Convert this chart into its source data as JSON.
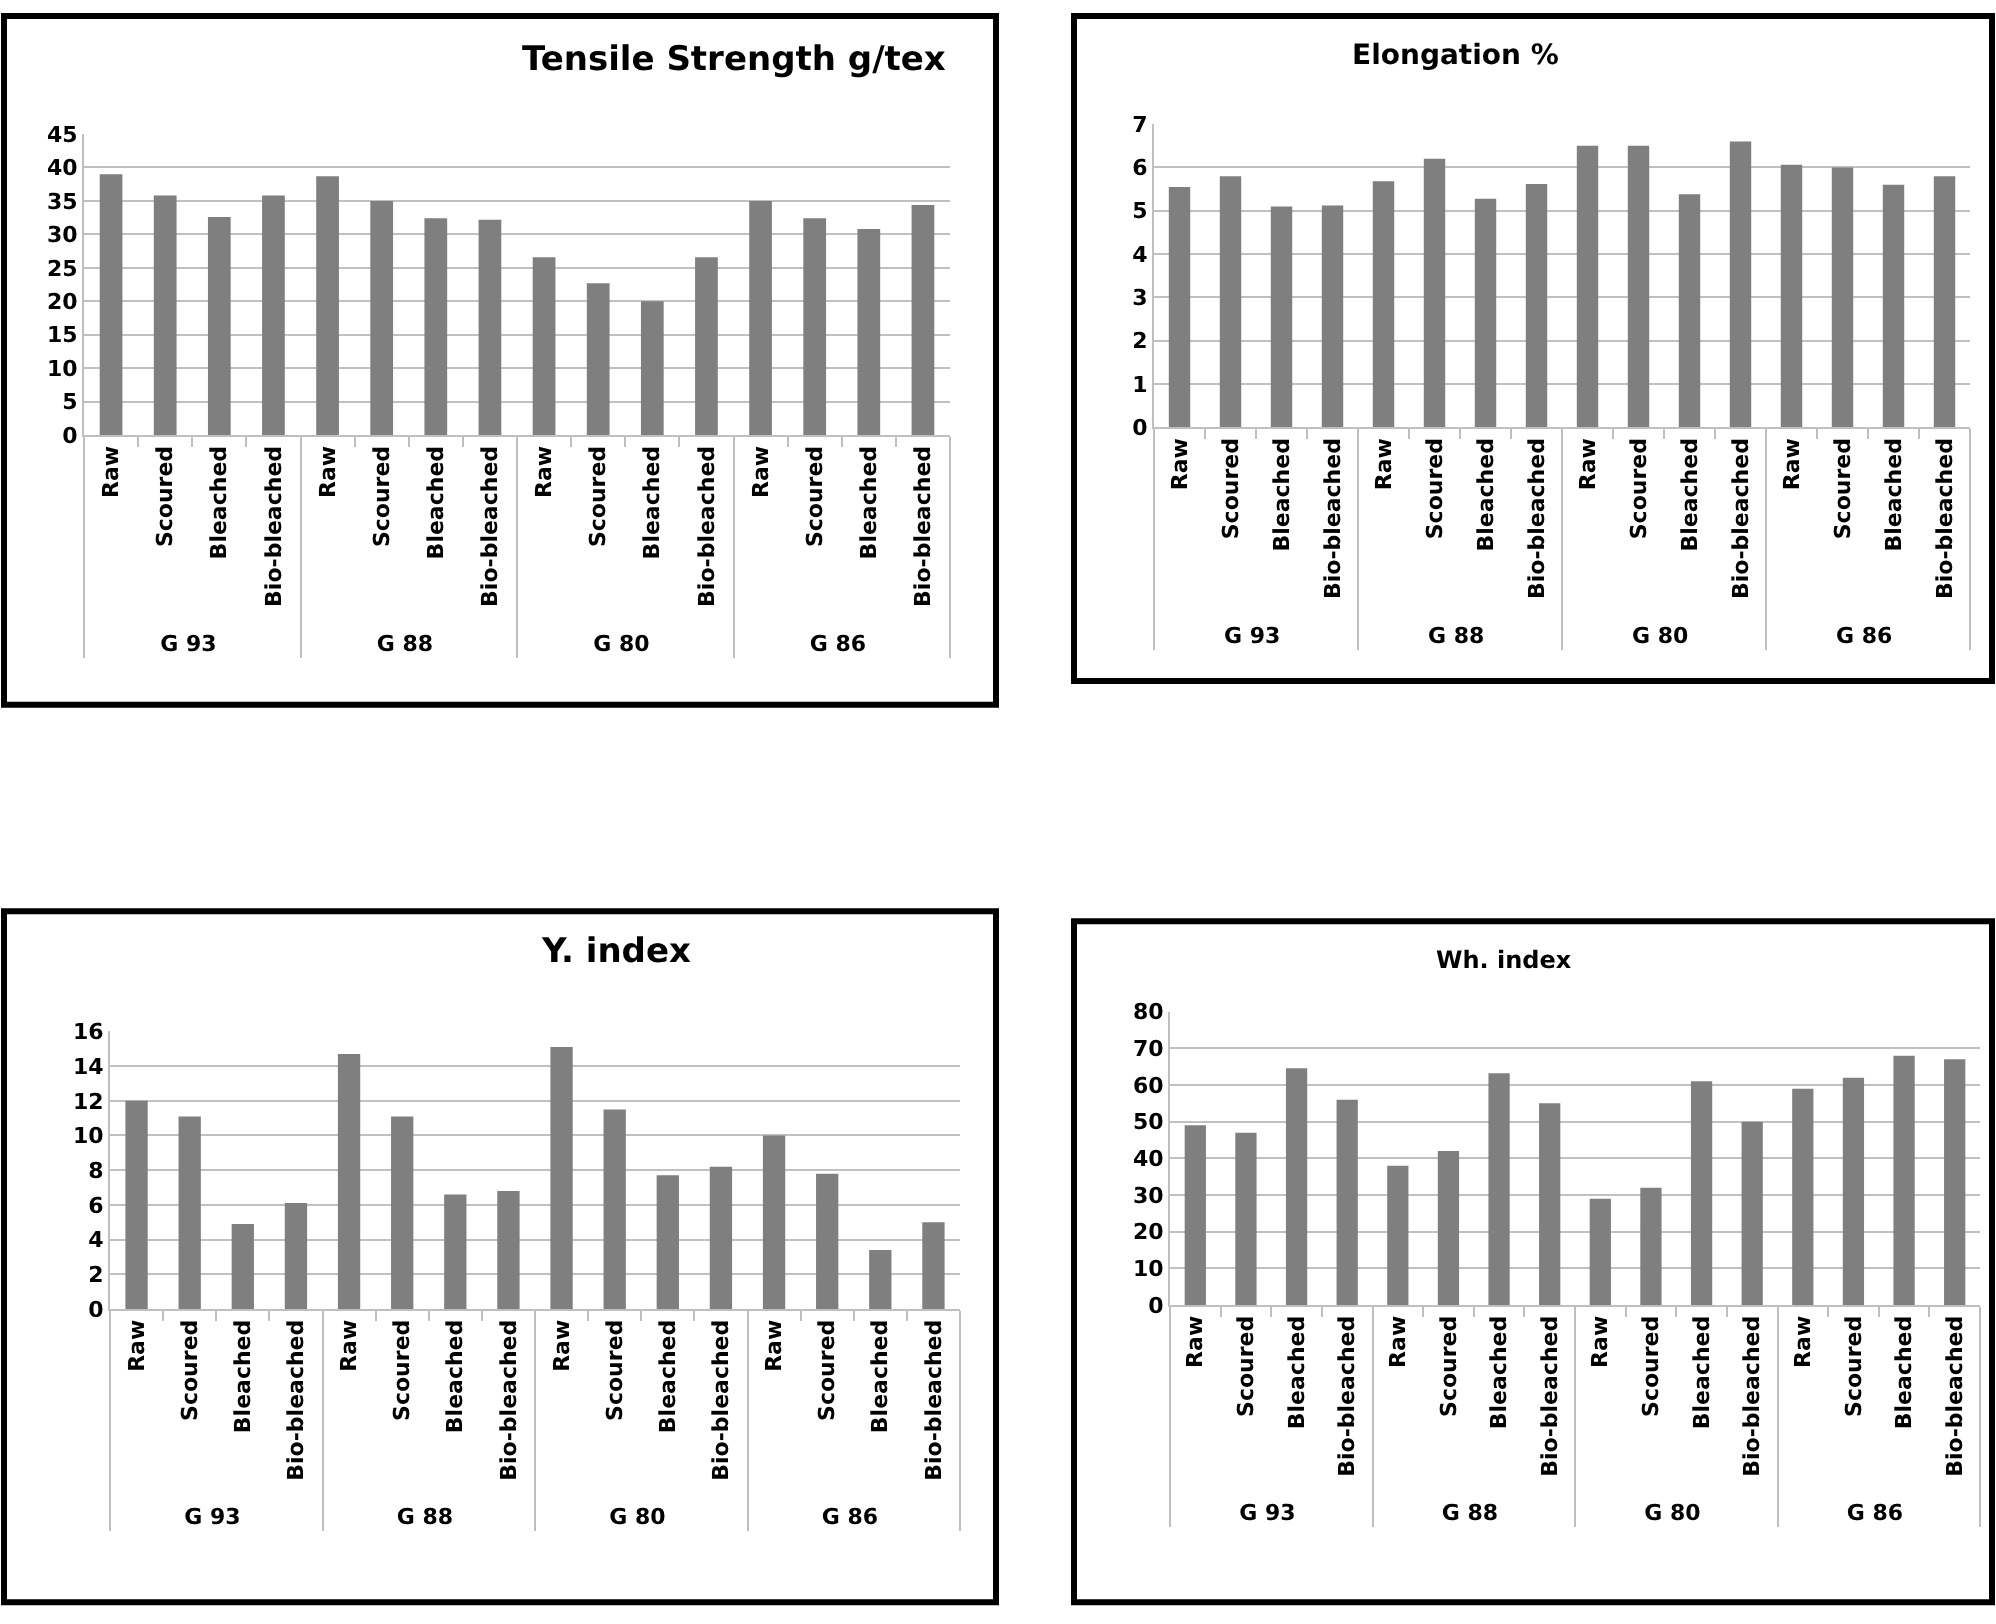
{
  "chart_data": [
    {
      "type": "bar",
      "title": "Tensile Strength g/tex",
      "categories": [
        "Raw",
        "Scoured",
        "Bleached",
        "Bio-bleached",
        "Raw",
        "Scoured",
        "Bleached",
        "Bio-bleached",
        "Raw",
        "Scoured",
        "Bleached",
        "Bio-bleached",
        "Raw",
        "Scoured",
        "Bleached",
        "Bio-bleached"
      ],
      "values": [
        39,
        35.8,
        32.6,
        35.8,
        38.7,
        35,
        32.4,
        32.2,
        26.6,
        22.7,
        20,
        26.6,
        35,
        32.4,
        30.8,
        34.4
      ],
      "color": "#7f7f7f",
      "ylim": [
        0,
        45
      ],
      "yticks": [
        0,
        5,
        10,
        15,
        20,
        25,
        30,
        35,
        40,
        45
      ],
      "grid": "y",
      "annotations": [
        "G 93",
        "G 88",
        "G 80",
        "G 86"
      ]
    },
    {
      "type": "bar",
      "title": "Elongation %",
      "categories": [
        "Raw",
        "Scoured",
        "Bleached",
        "Bio-bleached",
        "Raw",
        "Scoured",
        "Bleached",
        "Bio-bleached",
        "Raw",
        "Scoured",
        "Bleached",
        "Bio-bleached",
        "Raw",
        "Scoured",
        "Bleached",
        "Bio-bleached"
      ],
      "values": [
        5.55,
        5.8,
        5.1,
        5.12,
        5.68,
        6.2,
        5.28,
        5.62,
        6.5,
        6.5,
        5.38,
        6.6,
        6.06,
        6.0,
        5.6,
        5.8
      ],
      "color": "#7f7f7f",
      "ylim": [
        0,
        7
      ],
      "yticks": [
        0,
        1,
        2,
        3,
        4,
        5,
        6,
        7
      ],
      "grid": "y",
      "annotations": [
        "G 93",
        "G 88",
        "G 80",
        "G 86"
      ]
    },
    {
      "type": "bar",
      "title": "Y. index",
      "categories": [
        "Raw",
        "Scoured",
        "Bleached",
        "Bio-bleached",
        "Raw",
        "Scoured",
        "Bleached",
        "Bio-bleached",
        "Raw",
        "Scoured",
        "Bleached",
        "Bio-bleached",
        "Raw",
        "Scoured",
        "Bleached",
        "Bio-bleached"
      ],
      "values": [
        12,
        11.1,
        4.9,
        6.1,
        14.7,
        11.1,
        6.6,
        6.8,
        15.1,
        11.5,
        7.7,
        8.2,
        10,
        7.8,
        3.4,
        5.0
      ],
      "color": "#7f7f7f",
      "ylim": [
        0,
        16
      ],
      "yticks": [
        0,
        2,
        4,
        6,
        8,
        10,
        12,
        14,
        16
      ],
      "grid": "y",
      "annotations": [
        "G 93",
        "G 88",
        "G 80",
        "G 86"
      ]
    },
    {
      "type": "bar",
      "title": "Wh. index",
      "categories": [
        "Raw",
        "Scoured",
        "Bleached",
        "Bio-bleached",
        "Raw",
        "Scoured",
        "Bleached",
        "Bio-bleached",
        "Raw",
        "Scoured",
        "Bleached",
        "Bio-bleached",
        "Raw",
        "Scoured",
        "Bleached",
        "Bio-bleached"
      ],
      "values": [
        49,
        47,
        64.6,
        56,
        38,
        42,
        63.2,
        55,
        29,
        32,
        61,
        50,
        59,
        62,
        68,
        67
      ],
      "color": "#7f7f7f",
      "ylim": [
        0,
        80
      ],
      "yticks": [
        0,
        10,
        20,
        30,
        40,
        50,
        60,
        70,
        80
      ],
      "grid": "y",
      "annotations": [
        "G 93",
        "G 88",
        "G 80",
        "G 86"
      ]
    }
  ]
}
